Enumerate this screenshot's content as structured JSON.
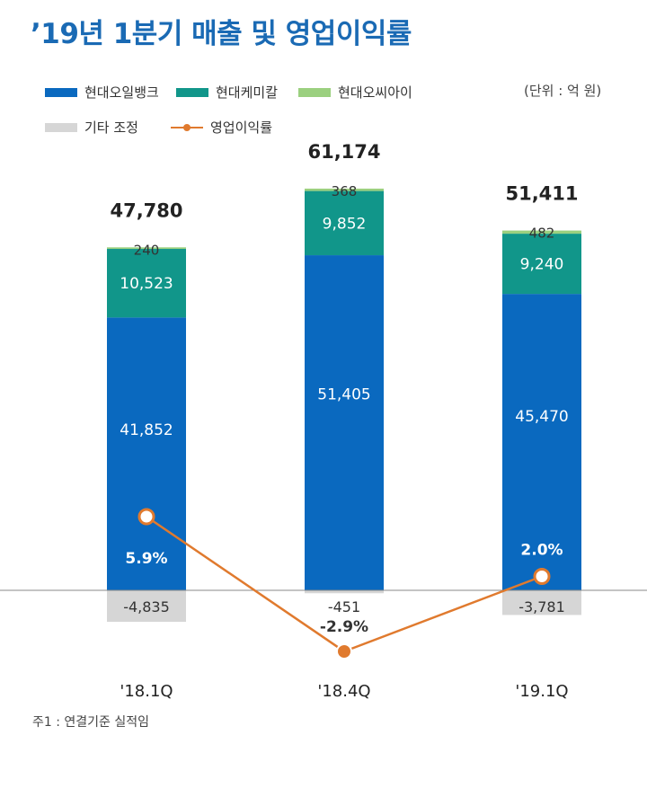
{
  "title": "’19년 1분기 매출 및 영업이익률",
  "unit_label": "(단위 : 억 원)",
  "footnote": "주1 : 연결기준 실적임",
  "colors": {
    "oilbank": "#0a69bf",
    "chemical": "#11968a",
    "oci": "#9bd07f",
    "other": "#d6d6d6",
    "margin": "#e07a2e",
    "title": "#1a6ab4"
  },
  "legend": {
    "oilbank": "현대오일뱅크",
    "chemical": "현대케미칼",
    "oci": "현대오씨아이",
    "other": "기타 조정",
    "margin": "영업이익률"
  },
  "chart_data": {
    "type": "bar",
    "stacked": true,
    "categories": [
      "'18.1Q",
      "'18.4Q",
      "'19.1Q"
    ],
    "totals": [
      "47,780",
      "61,174",
      "51,411"
    ],
    "series": [
      {
        "name": "현대오일뱅크",
        "values": [
          41852,
          51405,
          45470
        ],
        "labels": [
          "41,852",
          "51,405",
          "45,470"
        ]
      },
      {
        "name": "현대케미칼",
        "values": [
          10523,
          9852,
          9240
        ],
        "labels": [
          "10,523",
          "9,852",
          "9,240"
        ]
      },
      {
        "name": "현대오씨아이",
        "values": [
          240,
          368,
          482
        ],
        "labels": [
          "240",
          "368",
          "482"
        ]
      },
      {
        "name": "기타 조정",
        "values": [
          -4835,
          -451,
          -3781
        ],
        "labels": [
          "-4,835",
          "-451",
          "-3,781"
        ]
      }
    ],
    "line_series": {
      "name": "영업이익률",
      "values": [
        5.9,
        -2.9,
        2.0
      ],
      "labels": [
        "5.9%",
        "-2.9%",
        "2.0%"
      ]
    },
    "legend_position": "top-left",
    "grid": false
  }
}
